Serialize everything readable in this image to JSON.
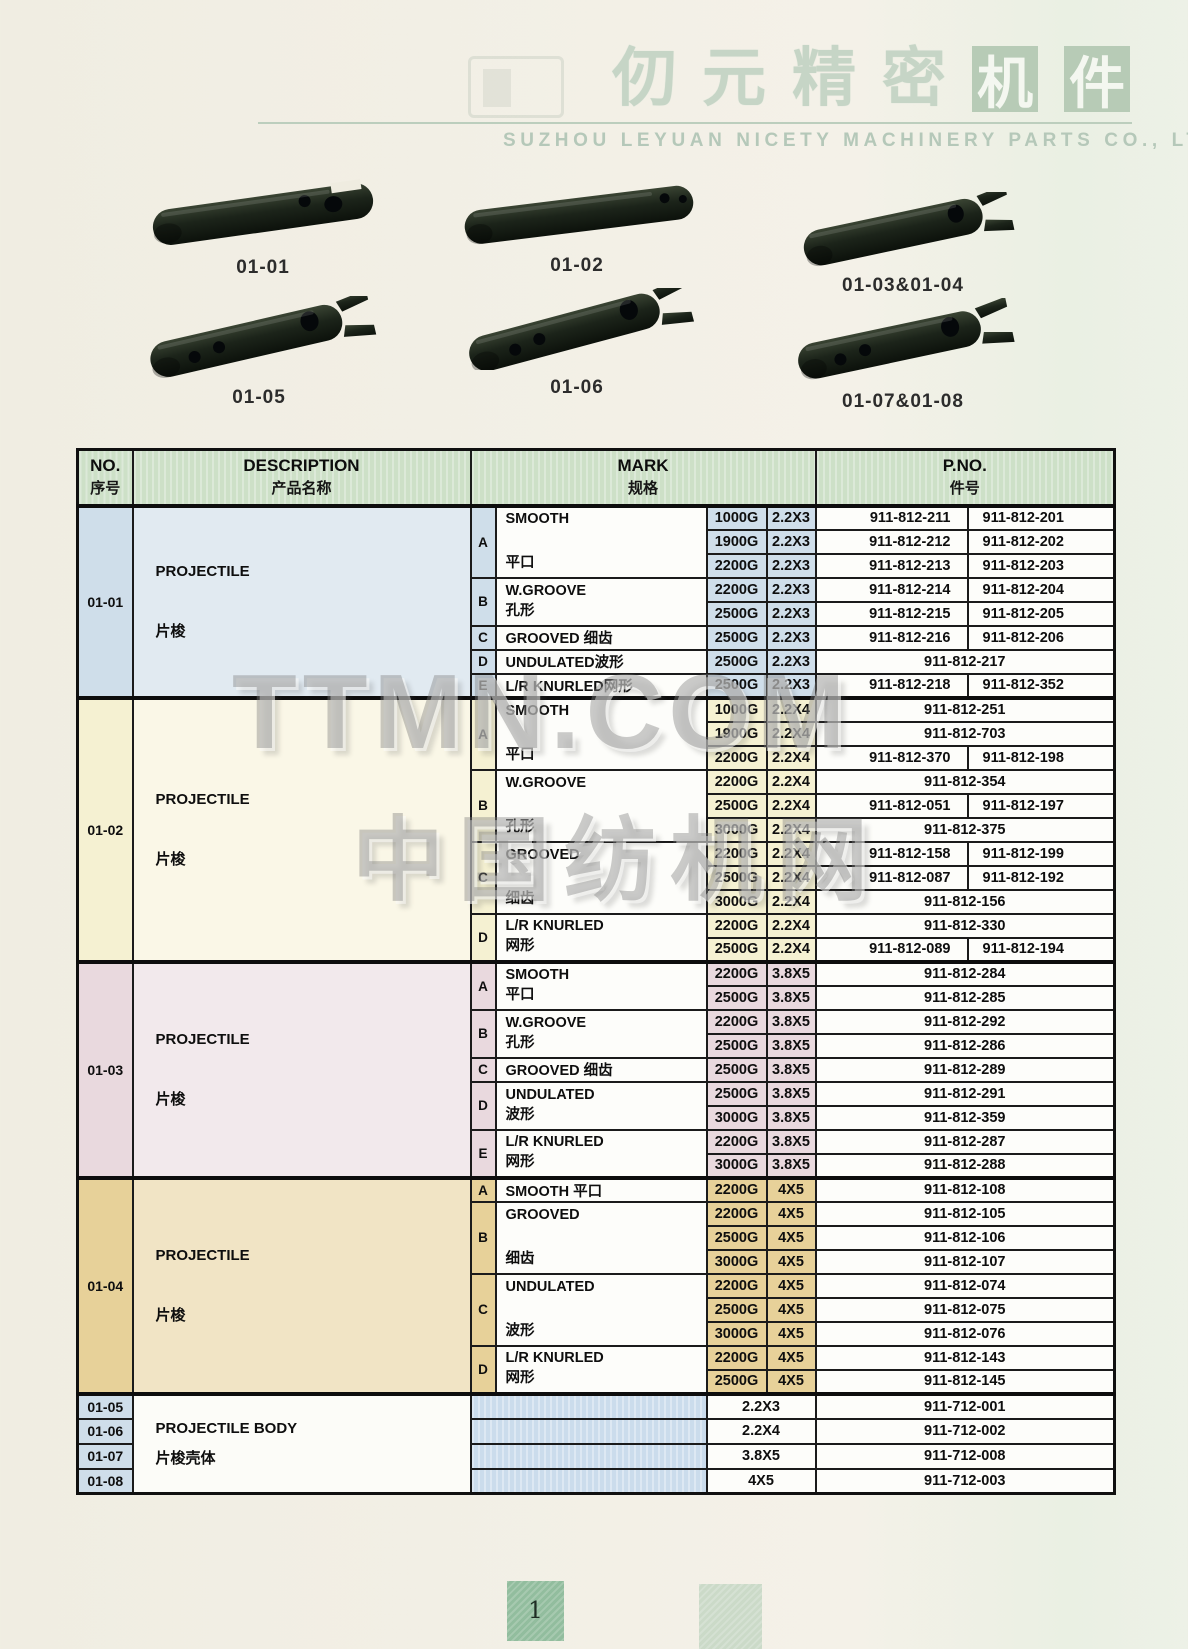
{
  "header": {
    "title_light": [
      "仞",
      "元",
      "精",
      "密"
    ],
    "title_boxed": [
      "机",
      "件"
    ],
    "subtitle": "SUZHOU LEYUAN NICETY MACHINERY PARTS CO., LTD"
  },
  "products": {
    "labels": [
      "01-01",
      "01-02",
      "01-03&01-04",
      "01-05",
      "01-06",
      "01-07&01-08"
    ]
  },
  "watermark": {
    "line1": "TTMN.COM",
    "line2": "中国纺机网"
  },
  "footer": {
    "page_number": "1"
  },
  "colors": {
    "header_green": "#cde0c7",
    "section_01_01": "#cfdeea",
    "section_01_02": "#f5f1d2",
    "section_01_03": "#e9d9de",
    "section_01_04": "#e7d199",
    "bottom_mark_blue": "#cbdcec",
    "page_number_green": "#92bd9e",
    "brand_green": "#b7cbb6"
  },
  "table": {
    "headers": {
      "no_en": "NO.",
      "no_zh": "序号",
      "desc_en": "DESCRIPTION",
      "desc_zh": "产品名称",
      "mark_en": "MARK",
      "mark_zh": "规格",
      "pno_en": "P.NO.",
      "pno_zh": "件号"
    },
    "sections": [
      {
        "no": "01-01",
        "theme": "s1",
        "desc_en": "PROJECTILE",
        "desc_zh": "片梭",
        "groups": [
          {
            "letter": "A",
            "top": "SMOOTH",
            "bottom": "平口",
            "rows": [
              {
                "weight": "1000G",
                "size": "2.2X3",
                "pno": [
                  "911-812-211",
                  "911-812-201"
                ]
              },
              {
                "weight": "1900G",
                "size": "2.2X3",
                "pno": [
                  "911-812-212",
                  "911-812-202"
                ]
              },
              {
                "weight": "2200G",
                "size": "2.2X3",
                "pno": [
                  "911-812-213",
                  "911-812-203"
                ]
              }
            ]
          },
          {
            "letter": "B",
            "top": "W.GROOVE",
            "bottom": "孔形",
            "rows": [
              {
                "weight": "2200G",
                "size": "2.2X3",
                "pno": [
                  "911-812-214",
                  "911-812-204"
                ]
              },
              {
                "weight": "2500G",
                "size": "2.2X3",
                "pno": [
                  "911-812-215",
                  "911-812-205"
                ]
              }
            ]
          },
          {
            "letter": "C",
            "top": "GROOVED 细齿",
            "bottom": "",
            "rows": [
              {
                "weight": "2500G",
                "size": "2.2X3",
                "pno": [
                  "911-812-216",
                  "911-812-206"
                ]
              }
            ]
          },
          {
            "letter": "D",
            "top": "UNDULATED波形",
            "bottom": "",
            "rows": [
              {
                "weight": "2500G",
                "size": "2.2X3",
                "pno": [
                  "911-812-217"
                ]
              }
            ]
          },
          {
            "letter": "E",
            "top": "L/R KNURLED网形",
            "bottom": "",
            "rows": [
              {
                "weight": "2500G",
                "size": "2.2X3",
                "pno": [
                  "911-812-218",
                  "911-812-352"
                ]
              }
            ]
          }
        ]
      },
      {
        "no": "01-02",
        "theme": "s2",
        "desc_en": "PROJECTILE",
        "desc_zh": "片梭",
        "groups": [
          {
            "letter": "A",
            "top": "SMOOTH",
            "bottom": "平口",
            "rows": [
              {
                "weight": "1000G",
                "size": "2.2X4",
                "pno": [
                  "911-812-251"
                ]
              },
              {
                "weight": "1900G",
                "size": "2.2X4",
                "pno": [
                  "911-812-703"
                ]
              },
              {
                "weight": "2200G",
                "size": "2.2X4",
                "pno": [
                  "911-812-370",
                  "911-812-198"
                ]
              }
            ]
          },
          {
            "letter": "B",
            "top": "W.GROOVE",
            "bottom": "孔形",
            "rows": [
              {
                "weight": "2200G",
                "size": "2.2X4",
                "pno": [
                  "911-812-354"
                ]
              },
              {
                "weight": "2500G",
                "size": "2.2X4",
                "pno": [
                  "911-812-051",
                  "911-812-197"
                ]
              },
              {
                "weight": "3000G",
                "size": "2.2X4",
                "pno": [
                  "911-812-375"
                ]
              }
            ]
          },
          {
            "letter": "C",
            "top": "GROOVED",
            "bottom": "细齿",
            "rows": [
              {
                "weight": "2200G",
                "size": "2.2X4",
                "pno": [
                  "911-812-158",
                  "911-812-199"
                ]
              },
              {
                "weight": "2500G",
                "size": "2.2X4",
                "pno": [
                  "911-812-087",
                  "911-812-192"
                ]
              },
              {
                "weight": "3000G",
                "size": "2.2X4",
                "pno": [
                  "911-812-156"
                ]
              }
            ]
          },
          {
            "letter": "D",
            "top": "L/R KNURLED",
            "bottom": "网形",
            "rows": [
              {
                "weight": "2200G",
                "size": "2.2X4",
                "pno": [
                  "911-812-330"
                ]
              },
              {
                "weight": "2500G",
                "size": "2.2X4",
                "pno": [
                  "911-812-089",
                  "911-812-194"
                ]
              }
            ]
          }
        ]
      },
      {
        "no": "01-03",
        "theme": "s3",
        "desc_en": "PROJECTILE",
        "desc_zh": "片梭",
        "groups": [
          {
            "letter": "A",
            "top": "SMOOTH",
            "bottom": "平口",
            "rows": [
              {
                "weight": "2200G",
                "size": "3.8X5",
                "pno": [
                  "911-812-284"
                ]
              },
              {
                "weight": "2500G",
                "size": "3.8X5",
                "pno": [
                  "911-812-285"
                ]
              }
            ]
          },
          {
            "letter": "B",
            "top": "W.GROOVE",
            "bottom": "孔形",
            "rows": [
              {
                "weight": "2200G",
                "size": "3.8X5",
                "pno": [
                  "911-812-292"
                ]
              },
              {
                "weight": "2500G",
                "size": "3.8X5",
                "pno": [
                  "911-812-286"
                ]
              }
            ]
          },
          {
            "letter": "C",
            "top": "GROOVED 细齿",
            "bottom": "",
            "rows": [
              {
                "weight": "2500G",
                "size": "3.8X5",
                "pno": [
                  "911-812-289"
                ]
              }
            ]
          },
          {
            "letter": "D",
            "top": "UNDULATED",
            "bottom": "波形",
            "rows": [
              {
                "weight": "2500G",
                "size": "3.8X5",
                "pno": [
                  "911-812-291"
                ]
              },
              {
                "weight": "3000G",
                "size": "3.8X5",
                "pno": [
                  "911-812-359"
                ]
              }
            ]
          },
          {
            "letter": "E",
            "top": "L/R KNURLED",
            "bottom": "网形",
            "rows": [
              {
                "weight": "2200G",
                "size": "3.8X5",
                "pno": [
                  "911-812-287"
                ]
              },
              {
                "weight": "3000G",
                "size": "3.8X5",
                "pno": [
                  "911-812-288"
                ]
              }
            ]
          }
        ]
      },
      {
        "no": "01-04",
        "theme": "s4",
        "desc_en": "PROJECTILE",
        "desc_zh": "片梭",
        "groups": [
          {
            "letter": "A",
            "top": "SMOOTH 平口",
            "bottom": "",
            "rows": [
              {
                "weight": "2200G",
                "size": "4X5",
                "pno": [
                  "911-812-108"
                ]
              }
            ]
          },
          {
            "letter": "B",
            "top": "GROOVED",
            "bottom": "细齿",
            "rows": [
              {
                "weight": "2200G",
                "size": "4X5",
                "pno": [
                  "911-812-105"
                ]
              },
              {
                "weight": "2500G",
                "size": "4X5",
                "pno": [
                  "911-812-106"
                ]
              },
              {
                "weight": "3000G",
                "size": "4X5",
                "pno": [
                  "911-812-107"
                ]
              }
            ]
          },
          {
            "letter": "C",
            "top": "UNDULATED",
            "bottom": "波形",
            "rows": [
              {
                "weight": "2200G",
                "size": "4X5",
                "pno": [
                  "911-812-074"
                ]
              },
              {
                "weight": "2500G",
                "size": "4X5",
                "pno": [
                  "911-812-075"
                ]
              },
              {
                "weight": "3000G",
                "size": "4X5",
                "pno": [
                  "911-812-076"
                ]
              }
            ]
          },
          {
            "letter": "D",
            "top": "L/R KNURLED",
            "bottom": "网形",
            "rows": [
              {
                "weight": "2200G",
                "size": "4X5",
                "pno": [
                  "911-812-143"
                ]
              },
              {
                "weight": "2500G",
                "size": "4X5",
                "pno": [
                  "911-812-145"
                ]
              }
            ]
          }
        ]
      }
    ],
    "bottom": {
      "desc_en": "PROJECTILE BODY",
      "desc_zh": "片梭壳体",
      "rows": [
        {
          "no": "01-05",
          "size": "2.2X3",
          "pno": "911-712-001"
        },
        {
          "no": "01-06",
          "size": "2.2X4",
          "pno": "911-712-002"
        },
        {
          "no": "01-07",
          "size": "3.8X5",
          "pno": "911-712-008"
        },
        {
          "no": "01-08",
          "size": "4X5",
          "pno": "911-712-003"
        }
      ]
    }
  }
}
